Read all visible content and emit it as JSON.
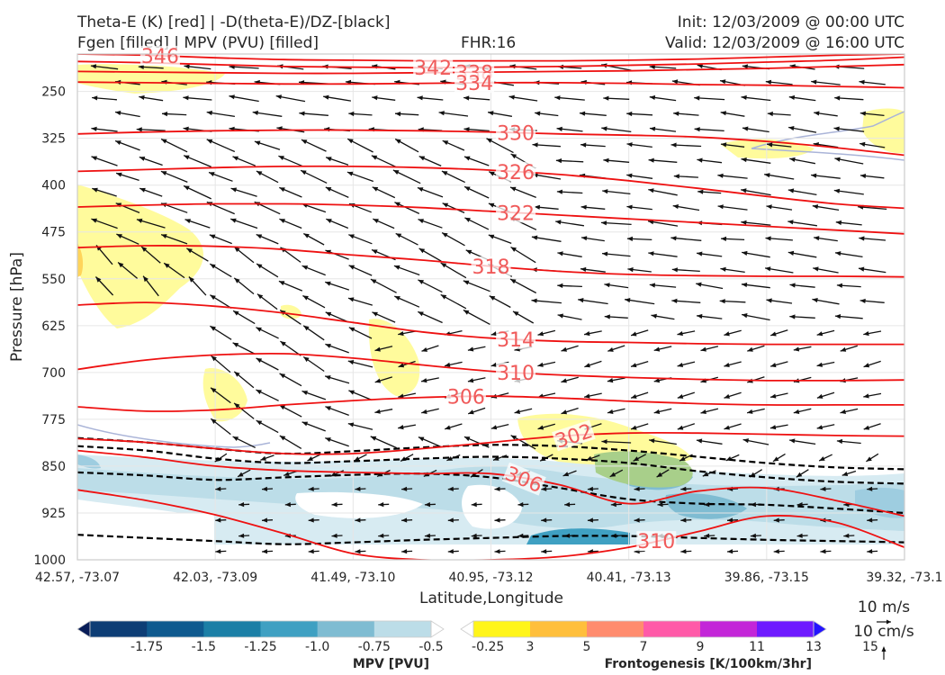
{
  "header": {
    "title_line1": "Theta-E (K) [red] | -D(theta-E)/DZ-[black]",
    "title_line2": "Fgen [filled] | MPV (PVU) [filled]",
    "fhr": "FHR:16",
    "init": "Init: 12/03/2009 @ 00:00 UTC",
    "valid": "Valid: 12/03/2009 @ 16:00 UTC"
  },
  "chart_data": {
    "type": "cross-section",
    "xlabel": "Latitude,Longitude",
    "ylabel": "Pressure [hPa]",
    "y_scale": "linear, inverted",
    "ylim": [
      1000,
      190
    ],
    "y_ticks": [
      250,
      325,
      400,
      475,
      550,
      625,
      700,
      775,
      850,
      925,
      1000
    ],
    "x_ticks": [
      "42.57, -73.07",
      "42.03, -73.09",
      "41.49, -73.10",
      "40.95, -73.12",
      "40.41, -73.13",
      "39.86, -73.15",
      "39.32, -73.1"
    ],
    "theta_e_contours": [
      {
        "label": "346",
        "p": [
          190,
          192,
          196,
          199,
          200,
          201,
          201,
          201,
          200,
          198,
          195,
          192,
          190
        ]
      },
      {
        "label": "342",
        "p": [
          202,
          204,
          207,
          210,
          211,
          212,
          211,
          210,
          208,
          206,
          203,
          200,
          195
        ]
      },
      {
        "label": "338",
        "p": [
          218,
          219,
          220,
          221,
          221,
          220,
          219,
          218,
          217,
          215,
          213,
          210,
          207
        ]
      },
      {
        "label": "334",
        "p": [
          235,
          236,
          237,
          238,
          238,
          237,
          236,
          236,
          237,
          239,
          240,
          242,
          244
        ]
      },
      {
        "label": "330",
        "p": [
          318,
          315,
          313,
          312,
          312,
          313,
          315,
          318,
          320,
          323,
          330,
          340,
          352
        ]
      },
      {
        "label": "326",
        "p": [
          378,
          375,
          372,
          370,
          370,
          372,
          376,
          383,
          393,
          405,
          418,
          430,
          437
        ]
      },
      {
        "label": "322",
        "p": [
          435,
          432,
          430,
          430,
          432,
          436,
          442,
          448,
          454,
          460,
          466,
          472,
          478
        ]
      },
      {
        "label": "318",
        "p": [
          500,
          497,
          498,
          503,
          512,
          520,
          530,
          538,
          543,
          545,
          546,
          546,
          547
        ]
      },
      {
        "label": "314",
        "p": [
          592,
          588,
          594,
          605,
          620,
          635,
          645,
          650,
          652,
          654,
          655,
          655,
          655
        ]
      },
      {
        "label": "310",
        "p": [
          695,
          680,
          672,
          670,
          677,
          688,
          698,
          704,
          708,
          711,
          713,
          713,
          712
        ]
      },
      {
        "label": "306",
        "p": [
          755,
          762,
          760,
          752,
          745,
          740,
          738,
          741,
          746,
          750,
          752,
          752,
          752
        ]
      },
      {
        "label": "302",
        "p": [
          806,
          812,
          822,
          830,
          830,
          822,
          812,
          802,
          797,
          797,
          799,
          801,
          802
        ]
      },
      {
        "label": "306",
        "p": [
          825,
          836,
          850,
          857,
          860,
          862,
          862,
          880,
          910,
          890,
          885,
          905,
          930
        ]
      },
      {
        "label": "310",
        "p": [
          888,
          905,
          928,
          958,
          990,
          1000,
          1000,
          995,
          980,
          955,
          930,
          940,
          980
        ]
      }
    ],
    "theta_e_labels": [
      "346",
      "342",
      "338",
      "334",
      "330",
      "326",
      "322",
      "318",
      "314",
      "310",
      "306",
      "302",
      "306",
      "310"
    ],
    "stability_contours_dashed": [
      {
        "p": [
          805,
          812,
          822,
          830,
          826,
          820,
          816,
          818,
          825,
          835,
          845,
          852,
          855
        ]
      },
      {
        "p": [
          818,
          825,
          838,
          845,
          842,
          838,
          835,
          838,
          845,
          858,
          868,
          875,
          878
        ]
      },
      {
        "p": [
          860,
          865,
          872,
          868,
          864,
          862,
          868,
          885,
          903,
          910,
          912,
          918,
          925
        ]
      },
      {
        "p": [
          960,
          965,
          970,
          975,
          972,
          968,
          965,
          962,
          962,
          965,
          968,
          970,
          972
        ]
      }
    ],
    "colorbars": [
      {
        "label": "MPV [PVU]",
        "ticks": [
          "-1.75",
          "-1.5",
          "-1.25",
          "-1.0",
          "-0.75",
          "-0.5",
          "-0.25"
        ],
        "colors": [
          "#081d58",
          "#0d3d75",
          "#0f5a8f",
          "#1b7fa6",
          "#3fa0c2",
          "#7fbcd2",
          "#bcdde8",
          "#ffffff"
        ]
      },
      {
        "label": "Frontogenesis [K/100km/3hr]",
        "ticks": [
          "3",
          "5",
          "7",
          "9",
          "11",
          "13",
          "15"
        ],
        "colors": [
          "#ffffff",
          "#fff51a",
          "#ffbf3c",
          "#ff8c6e",
          "#ff5aa8",
          "#c326d8",
          "#6e1aff",
          "#2414ff"
        ]
      }
    ],
    "vector_key": {
      "horizontal": "10 m/s",
      "vertical": "10 cm/s"
    }
  }
}
